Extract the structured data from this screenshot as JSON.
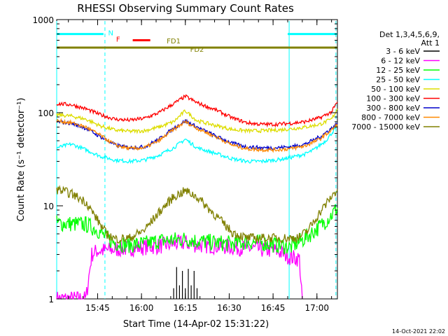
{
  "chart_data": {
    "type": "line",
    "title": "RHESSI Observing Summary Count Rates",
    "xlabel": "Start Time (14-Apr-02 15:31:22)",
    "ylabel": "Count Rate (s⁻¹ detector⁻¹)",
    "y_scale": "log",
    "ylim": [
      1,
      1000
    ],
    "xlim_minutes": [
      0,
      96
    ],
    "x_ticks": [
      {
        "label": "15:45",
        "minute": 14
      },
      {
        "label": "16:00",
        "minute": 29
      },
      {
        "label": "16:15",
        "minute": 44
      },
      {
        "label": "16:30",
        "minute": 59
      },
      {
        "label": "16:45",
        "minute": 74
      },
      {
        "label": "17:00",
        "minute": 89
      }
    ],
    "y_ticks": [
      {
        "label": "1",
        "value": 1
      },
      {
        "label": "10",
        "value": 10
      },
      {
        "label": "100",
        "value": 100
      },
      {
        "label": "1000",
        "value": 1000
      }
    ],
    "legend_header": [
      "Det 1,3,4,5,6,9,",
      "Att 1"
    ],
    "legend_position": "right",
    "timestamp": "14-Oct-2021 22:02",
    "series": [
      {
        "name": "3 - 6 keV",
        "color": "#000000",
        "points": [
          [
            40,
            1.3
          ],
          [
            41,
            2.2
          ],
          [
            42,
            1.4
          ],
          [
            43,
            2.0
          ],
          [
            44,
            1.3
          ],
          [
            45,
            2.1
          ],
          [
            46,
            1.4
          ],
          [
            47,
            2.0
          ],
          [
            48,
            1.3
          ]
        ]
      },
      {
        "name": "6 - 12 keV",
        "color": "#ff00ff",
        "points": [
          [
            0,
            1.0
          ],
          [
            10,
            1.0
          ],
          [
            12,
            3.0
          ],
          [
            14,
            3.3
          ],
          [
            16,
            3.3
          ],
          [
            20,
            3.4
          ],
          [
            25,
            3.5
          ],
          [
            30,
            3.6
          ],
          [
            35,
            3.7
          ],
          [
            40,
            3.9
          ],
          [
            44,
            4.0
          ],
          [
            48,
            3.8
          ],
          [
            55,
            3.7
          ],
          [
            60,
            3.6
          ],
          [
            65,
            3.5
          ],
          [
            70,
            3.4
          ],
          [
            75,
            3.3
          ],
          [
            78,
            3.0
          ],
          [
            80,
            2.8
          ],
          [
            83,
            2.7
          ],
          [
            84,
            1.0
          ]
        ]
      },
      {
        "name": "12 - 25 keV",
        "color": "#00ff00",
        "points": [
          [
            0,
            6.5
          ],
          [
            5,
            6.4
          ],
          [
            10,
            6.3
          ],
          [
            14,
            5.5
          ],
          [
            17,
            4.5
          ],
          [
            20,
            4.0
          ],
          [
            25,
            3.8
          ],
          [
            30,
            3.9
          ],
          [
            35,
            4.2
          ],
          [
            40,
            4.3
          ],
          [
            44,
            4.4
          ],
          [
            48,
            4.2
          ],
          [
            55,
            4.0
          ],
          [
            60,
            3.9
          ],
          [
            65,
            4.1
          ],
          [
            70,
            4.0
          ],
          [
            75,
            3.8
          ],
          [
            80,
            3.6
          ],
          [
            85,
            4.5
          ],
          [
            90,
            6.0
          ],
          [
            94,
            8.0
          ],
          [
            96,
            9.5
          ]
        ]
      },
      {
        "name": "25 - 50 keV",
        "color": "#00ffff",
        "points": [
          [
            0,
            42
          ],
          [
            5,
            46
          ],
          [
            10,
            40
          ],
          [
            15,
            34
          ],
          [
            20,
            31
          ],
          [
            25,
            30
          ],
          [
            30,
            31
          ],
          [
            35,
            35
          ],
          [
            40,
            42
          ],
          [
            44,
            52
          ],
          [
            48,
            42
          ],
          [
            55,
            36
          ],
          [
            60,
            32
          ],
          [
            65,
            30
          ],
          [
            70,
            30
          ],
          [
            75,
            31
          ],
          [
            80,
            33
          ],
          [
            85,
            36
          ],
          [
            88,
            40
          ],
          [
            92,
            50
          ],
          [
            96,
            72
          ]
        ]
      },
      {
        "name": "50 - 100 keV",
        "color": "#dddd00",
        "points": [
          [
            0,
            95
          ],
          [
            5,
            92
          ],
          [
            10,
            85
          ],
          [
            15,
            72
          ],
          [
            20,
            65
          ],
          [
            25,
            63
          ],
          [
            30,
            64
          ],
          [
            35,
            70
          ],
          [
            40,
            80
          ],
          [
            44,
            105
          ],
          [
            48,
            82
          ],
          [
            55,
            72
          ],
          [
            60,
            66
          ],
          [
            65,
            64
          ],
          [
            70,
            64
          ],
          [
            75,
            65
          ],
          [
            80,
            67
          ],
          [
            85,
            70
          ],
          [
            90,
            75
          ],
          [
            94,
            85
          ],
          [
            96,
            110
          ]
        ]
      },
      {
        "name": "100 - 300 keV",
        "color": "#ff0000",
        "points": [
          [
            0,
            125
          ],
          [
            5,
            122
          ],
          [
            10,
            110
          ],
          [
            15,
            95
          ],
          [
            20,
            85
          ],
          [
            25,
            83
          ],
          [
            30,
            87
          ],
          [
            35,
            100
          ],
          [
            40,
            125
          ],
          [
            44,
            150
          ],
          [
            48,
            128
          ],
          [
            55,
            105
          ],
          [
            60,
            88
          ],
          [
            65,
            78
          ],
          [
            70,
            75
          ],
          [
            75,
            75
          ],
          [
            80,
            77
          ],
          [
            85,
            80
          ],
          [
            90,
            88
          ],
          [
            94,
            102
          ],
          [
            96,
            130
          ]
        ]
      },
      {
        "name": "300 - 800 keV",
        "color": "#0000cc",
        "points": [
          [
            0,
            80
          ],
          [
            5,
            77
          ],
          [
            10,
            68
          ],
          [
            15,
            55
          ],
          [
            20,
            45
          ],
          [
            25,
            42
          ],
          [
            30,
            43
          ],
          [
            35,
            52
          ],
          [
            40,
            68
          ],
          [
            44,
            82
          ],
          [
            48,
            70
          ],
          [
            55,
            55
          ],
          [
            60,
            47
          ],
          [
            65,
            43
          ],
          [
            70,
            42
          ],
          [
            75,
            42
          ],
          [
            80,
            43
          ],
          [
            85,
            46
          ],
          [
            90,
            55
          ],
          [
            94,
            68
          ],
          [
            96,
            77
          ]
        ]
      },
      {
        "name": "800 - 7000 keV",
        "color": "#ff8800",
        "points": [
          [
            0,
            82
          ],
          [
            5,
            78
          ],
          [
            10,
            70
          ],
          [
            15,
            57
          ],
          [
            20,
            45
          ],
          [
            25,
            41
          ],
          [
            30,
            42
          ],
          [
            35,
            50
          ],
          [
            40,
            66
          ],
          [
            44,
            80
          ],
          [
            48,
            68
          ],
          [
            55,
            54
          ],
          [
            60,
            45
          ],
          [
            65,
            41
          ],
          [
            70,
            40
          ],
          [
            75,
            40
          ],
          [
            80,
            41
          ],
          [
            85,
            44
          ],
          [
            90,
            52
          ],
          [
            94,
            65
          ],
          [
            96,
            75
          ]
        ]
      },
      {
        "name": "7000 - 15000 keV",
        "color": "#808000",
        "points": [
          [
            0,
            15
          ],
          [
            5,
            13.5
          ],
          [
            10,
            11
          ],
          [
            14,
            7.0
          ],
          [
            17,
            5.0
          ],
          [
            20,
            4.4
          ],
          [
            25,
            4.5
          ],
          [
            30,
            5.5
          ],
          [
            35,
            8.5
          ],
          [
            40,
            12.5
          ],
          [
            44,
            14.5
          ],
          [
            48,
            12.5
          ],
          [
            55,
            7.5
          ],
          [
            60,
            5.2
          ],
          [
            65,
            4.5
          ],
          [
            70,
            4.5
          ],
          [
            75,
            4.5
          ],
          [
            80,
            4.5
          ],
          [
            83,
            4.6
          ],
          [
            86,
            5.5
          ],
          [
            90,
            8.5
          ],
          [
            94,
            12.5
          ],
          [
            96,
            15
          ]
        ]
      }
    ],
    "annotations": [
      {
        "label": "N",
        "color": "#00ffff",
        "value": 700,
        "segments": [
          [
            0,
            16
          ],
          [
            79,
            96
          ]
        ]
      },
      {
        "label": "F",
        "color": "#ff0000",
        "value": 600,
        "segments": [
          [
            26,
            32
          ]
        ]
      },
      {
        "label": "FD1",
        "color": "#808000",
        "value": 500,
        "segments": [
          [
            0,
            96
          ]
        ]
      },
      {
        "label": "FD2",
        "color": "#808000",
        "value": 500,
        "segments": []
      }
    ],
    "vertical_markers": [
      {
        "minute": 0,
        "color": "#00ffff",
        "style": "solid"
      },
      {
        "minute": 16.5,
        "color": "#00ffff",
        "style": "dashed"
      },
      {
        "minute": 79.5,
        "color": "#00ffff",
        "style": "solid"
      },
      {
        "minute": 95.5,
        "color": "#00ffff",
        "style": "dashed"
      }
    ]
  }
}
